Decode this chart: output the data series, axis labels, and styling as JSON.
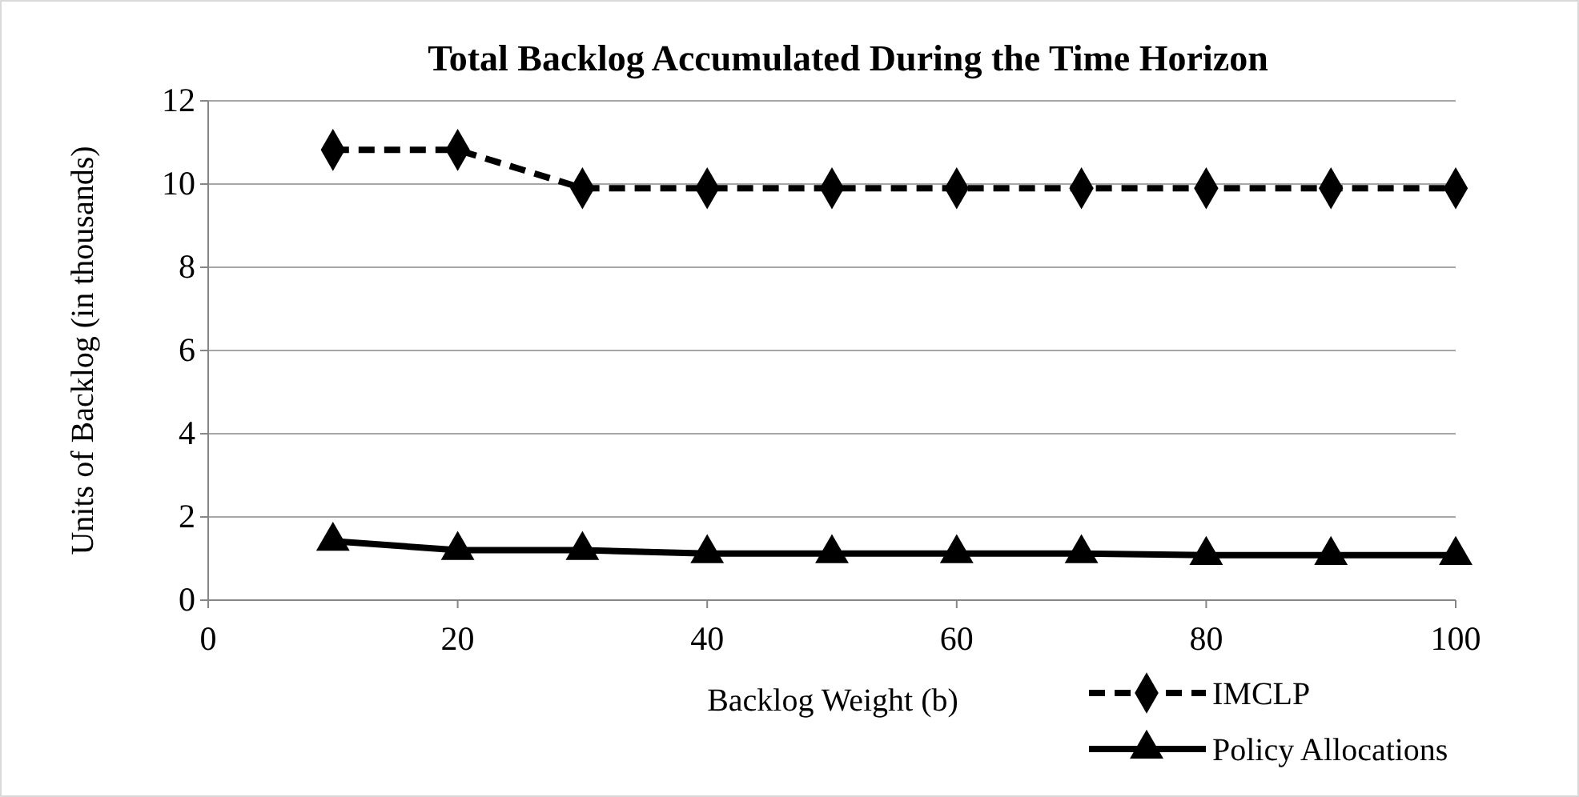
{
  "chart_data": {
    "type": "line",
    "title": "Total Backlog Accumulated During the Time Horizon",
    "xlabel": "Backlog Weight (b)",
    "ylabel": "Units of Backlog (in thousands)",
    "x": [
      10,
      20,
      30,
      40,
      50,
      60,
      70,
      80,
      90,
      100
    ],
    "xlim": [
      0,
      100
    ],
    "xticks": [
      0,
      20,
      40,
      60,
      80,
      100
    ],
    "ylim": [
      0,
      12
    ],
    "yticks": [
      0,
      2,
      4,
      6,
      8,
      10,
      12
    ],
    "grid": "y",
    "legend": "bottom right",
    "series": [
      {
        "name": "IMCLP",
        "color": "#000000",
        "marker": "diamond",
        "line_style": "dashed",
        "values": [
          10.82,
          10.82,
          9.9,
          9.9,
          9.9,
          9.9,
          9.9,
          9.9,
          9.9,
          9.9
        ]
      },
      {
        "name": "Policy Allocations",
        "color": "#000000",
        "marker": "triangle",
        "line_style": "solid",
        "values": [
          1.42,
          1.2,
          1.2,
          1.12,
          1.12,
          1.12,
          1.12,
          1.08,
          1.08,
          1.08
        ]
      }
    ]
  }
}
